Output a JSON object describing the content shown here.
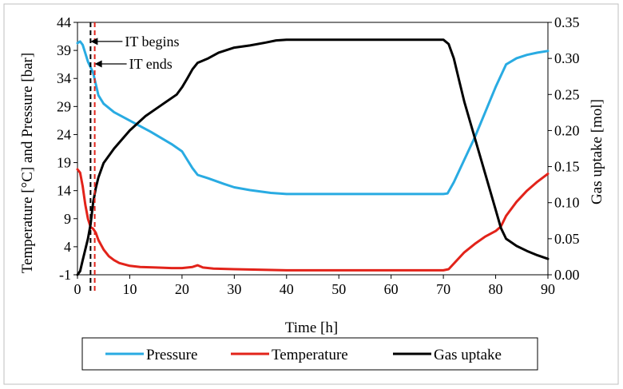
{
  "chart_data": {
    "type": "line",
    "title": "",
    "xlabel": "Time [h]",
    "ylabel_left": "Temperature [°C] and Pressure [bar]",
    "ylabel_right": "Gas uptake [mol]",
    "xlim": [
      0,
      90
    ],
    "ylim_left": [
      -1,
      44
    ],
    "ylim_right": [
      0,
      0.35
    ],
    "x_ticks": [
      "0",
      "10",
      "20",
      "30",
      "40",
      "50",
      "60",
      "70",
      "80",
      "90"
    ],
    "y_ticks_left": [
      "-1",
      "4",
      "9",
      "14",
      "19",
      "24",
      "29",
      "34",
      "39",
      "44"
    ],
    "y_ticks_right": [
      "0.00",
      "0.05",
      "0.10",
      "0.15",
      "0.20",
      "0.25",
      "0.30",
      "0.35"
    ],
    "legend_position": "bottom",
    "series": [
      {
        "name": "Pressure",
        "axis": "left",
        "color": "#29abe2",
        "x": [
          0,
          0.5,
          1,
          1.5,
          2,
          2.5,
          3,
          3.5,
          4,
          5,
          7,
          10,
          14,
          18,
          20,
          21,
          22,
          23,
          25,
          28,
          30,
          33,
          37,
          40,
          50,
          60,
          70,
          70.8,
          72,
          74,
          76,
          78,
          80,
          82,
          84,
          86,
          88,
          90
        ],
        "values": [
          40.3,
          40.6,
          40.0,
          38.5,
          37.0,
          36.0,
          35.0,
          33.0,
          31.0,
          29.5,
          28.0,
          26.5,
          24.5,
          22.3,
          21.0,
          19.5,
          18.0,
          16.8,
          16.2,
          15.2,
          14.6,
          14.1,
          13.6,
          13.4,
          13.4,
          13.4,
          13.4,
          13.5,
          15.5,
          19.5,
          23.5,
          28.0,
          32.5,
          36.5,
          37.6,
          38.2,
          38.6,
          38.9
        ]
      },
      {
        "name": "Temperature",
        "axis": "left",
        "color": "#e2231a",
        "x": [
          0,
          0.5,
          1,
          1.5,
          2,
          2.5,
          3,
          3.5,
          4,
          5,
          6,
          7,
          8,
          10,
          12,
          15,
          18,
          20,
          22,
          23,
          24,
          26,
          30,
          40,
          50,
          60,
          70,
          71,
          72,
          74,
          76,
          78,
          80,
          81,
          82,
          84,
          86,
          88,
          90
        ],
        "values": [
          17.8,
          17.2,
          14.8,
          11.5,
          9.0,
          7.5,
          7.2,
          6.5,
          5.2,
          3.5,
          2.3,
          1.6,
          1.1,
          0.6,
          0.4,
          0.3,
          0.2,
          0.2,
          0.4,
          0.7,
          0.3,
          0.1,
          0.0,
          -0.2,
          -0.2,
          -0.2,
          -0.2,
          0.0,
          1.0,
          3.0,
          4.5,
          5.8,
          6.8,
          7.6,
          9.5,
          12.0,
          14.0,
          15.6,
          17.0
        ]
      },
      {
        "name": "Gas uptake",
        "axis": "right",
        "color": "#000000",
        "x": [
          0,
          0.5,
          1,
          1.5,
          2,
          2.5,
          3,
          3.5,
          4,
          5,
          7,
          10,
          13,
          16,
          19,
          20,
          21,
          22,
          23,
          25,
          27,
          30,
          33,
          36,
          38,
          40,
          50,
          60,
          65,
          70,
          71,
          72,
          73,
          74,
          76,
          78,
          80,
          81,
          82,
          84,
          86,
          88,
          90
        ],
        "values": [
          0.0,
          0.005,
          0.02,
          0.035,
          0.05,
          0.07,
          0.1,
          0.12,
          0.135,
          0.155,
          0.175,
          0.2,
          0.22,
          0.235,
          0.25,
          0.26,
          0.272,
          0.285,
          0.294,
          0.3,
          0.308,
          0.315,
          0.318,
          0.322,
          0.325,
          0.326,
          0.326,
          0.326,
          0.326,
          0.326,
          0.32,
          0.3,
          0.27,
          0.24,
          0.19,
          0.14,
          0.09,
          0.065,
          0.05,
          0.04,
          0.033,
          0.027,
          0.022
        ]
      }
    ],
    "vertical_markers": [
      {
        "x": 2.5,
        "color": "#000000",
        "style": "dashed",
        "label": "IT begins"
      },
      {
        "x": 3.3,
        "color": "#e2231a",
        "style": "dashed",
        "label": "IT ends"
      }
    ],
    "annotations": [
      {
        "text": "IT begins",
        "x_at": 2.5,
        "y_at": 40.6
      },
      {
        "text": "IT ends",
        "x_at": 3.3,
        "y_at": 36.6
      }
    ]
  }
}
